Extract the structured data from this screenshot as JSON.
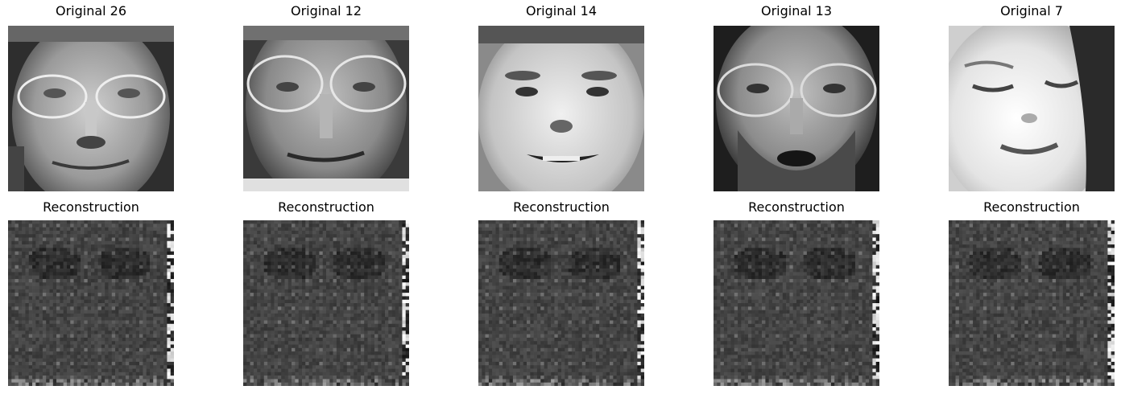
{
  "originals": [
    {
      "title": "Original 26",
      "face": "man-glasses"
    },
    {
      "title": "Original 12",
      "face": "man-glasses-older"
    },
    {
      "title": "Original 14",
      "face": "man-smiling"
    },
    {
      "title": "Original 13",
      "face": "man-glasses-beard"
    },
    {
      "title": "Original 7",
      "face": "woman-eyes-closed"
    }
  ],
  "reconstructions": [
    {
      "title": "Reconstruction"
    },
    {
      "title": "Reconstruction"
    },
    {
      "title": "Reconstruction"
    },
    {
      "title": "Reconstruction"
    },
    {
      "title": "Reconstruction"
    }
  ],
  "colors": {
    "background": "#ffffff",
    "recon_base": "#3a3a3a"
  }
}
